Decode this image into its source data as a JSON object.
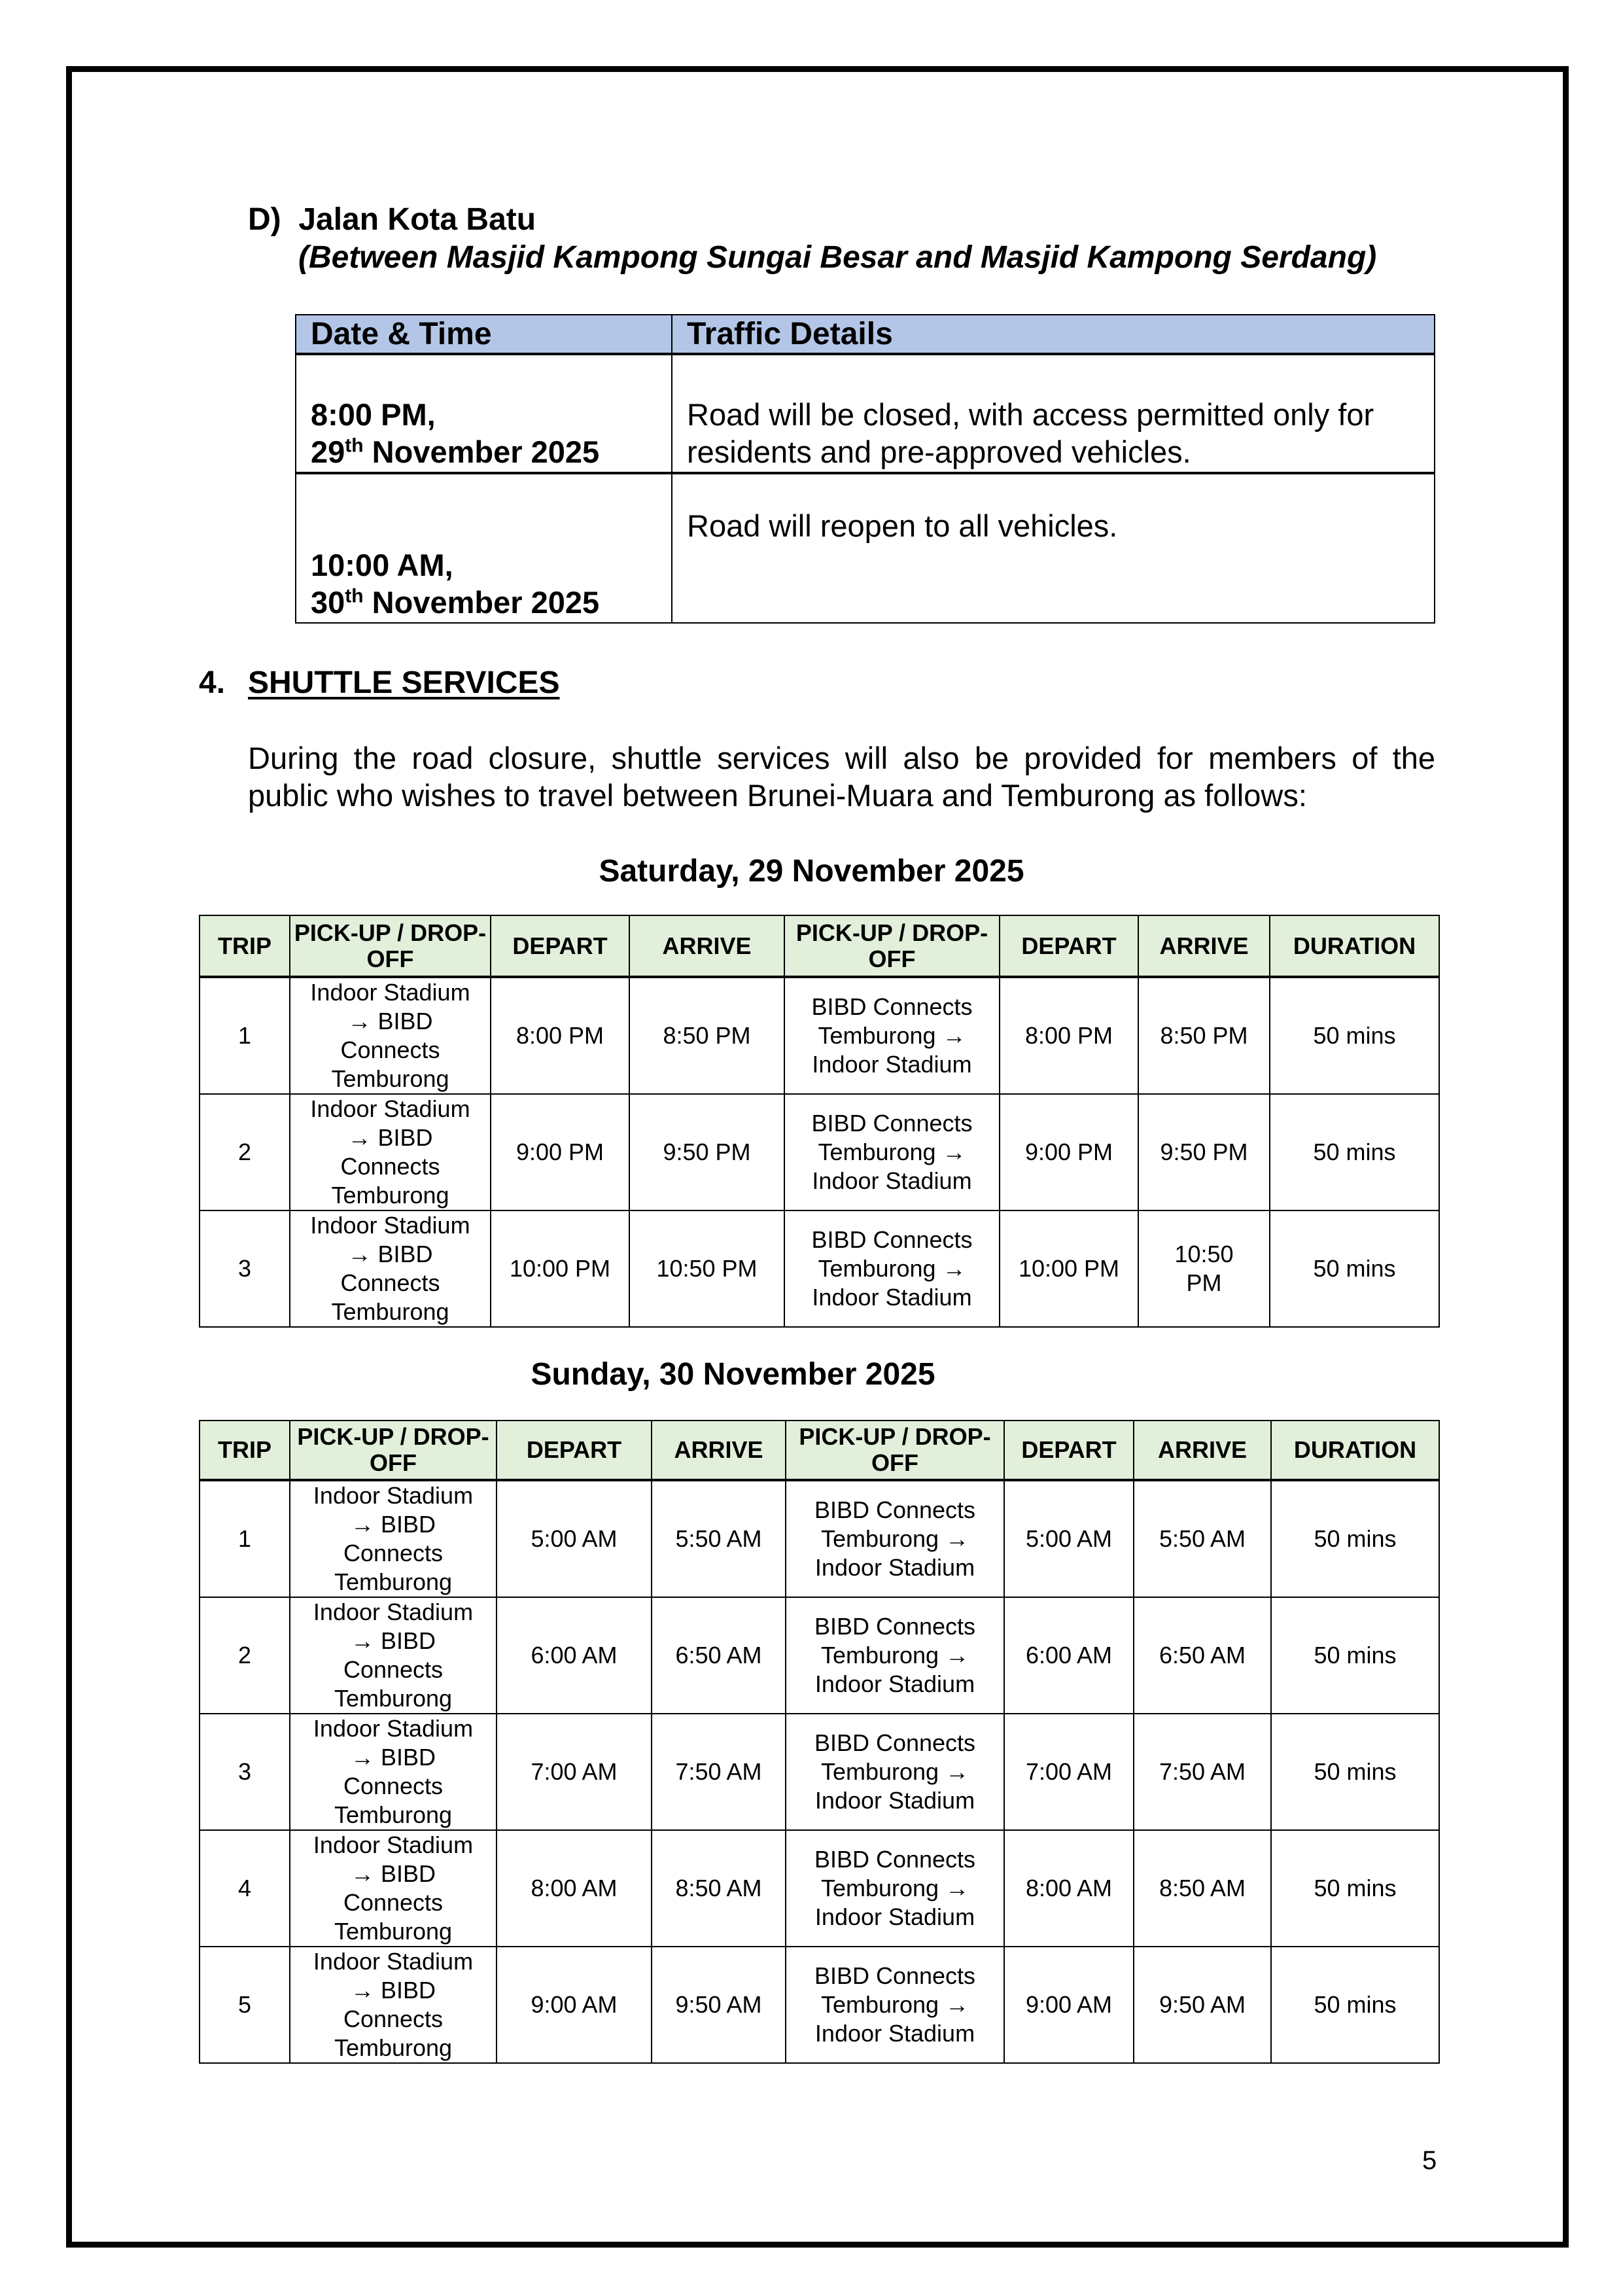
{
  "section_d": {
    "heading": "D)  Jalan Kota Batu",
    "subheading": "(Between Masjid Kampong Sungai Besar and Masjid Kampong Serdang)",
    "table": {
      "headers": [
        "Date & Time",
        "Traffic Details"
      ],
      "rows": [
        {
          "time": "8:00 PM,",
          "day": "29",
          "sup": "th",
          "date": " November 2025",
          "details": "Road will be closed, with access permitted only for residents and pre-approved vehicles."
        },
        {
          "time": "10:00 AM,",
          "day": "30",
          "sup": "th",
          "date": " November 2025",
          "details": "Road will reopen to all vehicles."
        }
      ]
    }
  },
  "section_4": {
    "number": "4.",
    "title": "SHUTTLE SERVICES",
    "paragraph": "During the road closure, shuttle services will also be provided for members of the public who wishes to travel between Brunei-Muara and Temburong as follows:"
  },
  "shuttle_headers": [
    "TRIP",
    "PICK-UP / DROP-OFF",
    "DEPART",
    "ARRIVE",
    "PICK-UP / DROP-OFF",
    "DEPART",
    "ARRIVE",
    "DURATION"
  ],
  "saturday": {
    "title": "Saturday, 29 November 2025",
    "rows": [
      [
        "1",
        "Indoor Stadium → BIBD Connects Temburong",
        "8:00 PM",
        "8:50 PM",
        "BIBD Connects Temburong → Indoor Stadium",
        "8:00 PM",
        "8:50 PM",
        "50 mins"
      ],
      [
        "2",
        "Indoor Stadium → BIBD Connects Temburong",
        "9:00 PM",
        "9:50 PM",
        "BIBD Connects Temburong → Indoor Stadium",
        "9:00 PM",
        "9:50 PM",
        "50 mins"
      ],
      [
        "3",
        "Indoor Stadium → BIBD Connects Temburong",
        "10:00 PM",
        "10:50 PM",
        "BIBD Connects Temburong → Indoor Stadium",
        "10:00 PM",
        "10:50 PM",
        "50 mins"
      ]
    ]
  },
  "sunday": {
    "title": "Sunday, 30 November 2025",
    "rows": [
      [
        "1",
        "Indoor Stadium → BIBD Connects Temburong",
        "5:00 AM",
        "5:50 AM",
        "BIBD Connects Temburong → Indoor Stadium",
        "5:00 AM",
        "5:50 AM",
        "50 mins"
      ],
      [
        "2",
        "Indoor Stadium → BIBD Connects Temburong",
        "6:00 AM",
        "6:50 AM",
        "BIBD Connects Temburong → Indoor Stadium",
        "6:00 AM",
        "6:50 AM",
        "50 mins"
      ],
      [
        "3",
        "Indoor Stadium → BIBD Connects Temburong",
        "7:00 AM",
        "7:50 AM",
        "BIBD Connects Temburong → Indoor Stadium",
        "7:00 AM",
        "7:50 AM",
        "50 mins"
      ],
      [
        "4",
        "Indoor Stadium → BIBD Connects Temburong",
        "8:00 AM",
        "8:50 AM",
        "BIBD Connects Temburong → Indoor Stadium",
        "8:00 AM",
        "8:50 AM",
        "50 mins"
      ],
      [
        "5",
        "Indoor Stadium → BIBD Connects Temburong",
        "9:00 AM",
        "9:50 AM",
        "BIBD Connects Temburong → Indoor Stadium",
        "9:00 AM",
        "9:50 AM",
        "50 mins"
      ]
    ]
  },
  "colors": {
    "traffic_header": "#b4c6e7",
    "shuttle_header": "#e2efda"
  },
  "page_number": "5"
}
